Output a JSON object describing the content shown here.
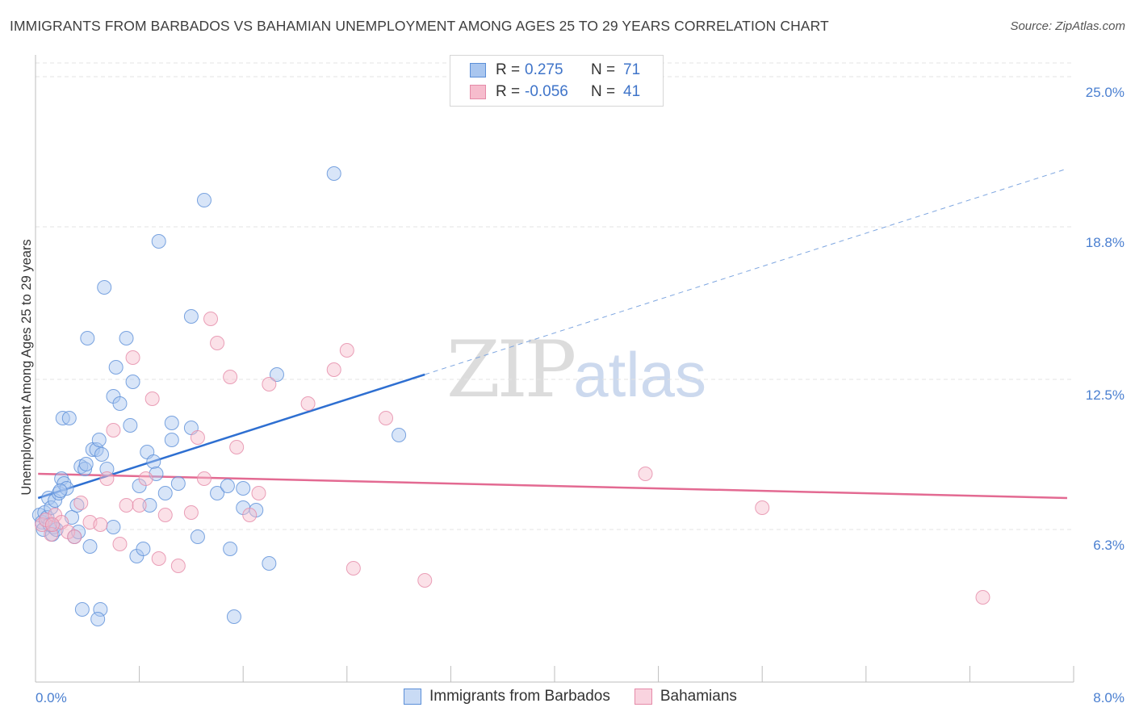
{
  "header": {
    "title": "IMMIGRANTS FROM BARBADOS VS BAHAMIAN UNEMPLOYMENT AMONG AGES 25 TO 29 YEARS CORRELATION CHART",
    "source": "Source: ZipAtlas.com"
  },
  "watermark": {
    "zip": "ZIP",
    "atlas": "atlas"
  },
  "legend": {
    "r_label": "R =",
    "n_label": "N =",
    "series": [
      {
        "r": "0.275",
        "n": "71",
        "color": "#a9c6ef",
        "border": "#5b8fd8"
      },
      {
        "r": "-0.056",
        "n": "41",
        "color": "#f6bccd",
        "border": "#e58aa8"
      }
    ]
  },
  "chart_data": {
    "type": "scatter",
    "title": "IMMIGRANTS FROM BARBADOS VS BAHAMIAN UNEMPLOYMENT AMONG AGES 25 TO 29 YEARS CORRELATION CHART",
    "xlabel": "",
    "ylabel": "Unemployment Among Ages 25 to 29 years",
    "xlim": [
      0,
      8
    ],
    "ylim": [
      0,
      25.9
    ],
    "x_tick_labels": [
      {
        "value": 0,
        "label": "0.0%"
      },
      {
        "value": 8,
        "label": "8.0%"
      }
    ],
    "y_ticks": [
      {
        "value": 6.3,
        "label": "6.3%"
      },
      {
        "value": 12.5,
        "label": "12.5%"
      },
      {
        "value": 18.8,
        "label": "18.8%"
      },
      {
        "value": 25.0,
        "label": "25.0%"
      }
    ],
    "series": [
      {
        "name": "Immigrants from Barbados",
        "color": "#a9c6ef",
        "stroke": "#5b8fd8",
        "trend": {
          "x0": 0.02,
          "y0": 7.6,
          "x1": 3.0,
          "y1": 12.7,
          "dash_to_x": 7.95,
          "dash_to_y": 21.2
        },
        "points": [
          [
            0.03,
            6.9
          ],
          [
            0.05,
            6.6
          ],
          [
            0.06,
            6.3
          ],
          [
            0.07,
            7.0
          ],
          [
            0.09,
            6.8
          ],
          [
            0.1,
            7.6
          ],
          [
            0.12,
            7.2
          ],
          [
            0.13,
            6.1
          ],
          [
            0.14,
            6.4
          ],
          [
            0.15,
            7.5
          ],
          [
            0.18,
            7.8
          ],
          [
            0.2,
            8.4
          ],
          [
            0.21,
            10.9
          ],
          [
            0.22,
            8.2
          ],
          [
            0.24,
            8.0
          ],
          [
            0.26,
            10.9
          ],
          [
            0.28,
            6.8
          ],
          [
            0.3,
            6.0
          ],
          [
            0.32,
            7.3
          ],
          [
            0.33,
            6.2
          ],
          [
            0.35,
            8.9
          ],
          [
            0.38,
            8.8
          ],
          [
            0.39,
            9.0
          ],
          [
            0.4,
            14.2
          ],
          [
            0.42,
            5.6
          ],
          [
            0.44,
            9.6
          ],
          [
            0.47,
            9.6
          ],
          [
            0.49,
            10.0
          ],
          [
            0.5,
            3.0
          ],
          [
            0.51,
            9.4
          ],
          [
            0.53,
            16.3
          ],
          [
            0.55,
            8.8
          ],
          [
            0.6,
            6.4
          ],
          [
            0.6,
            11.8
          ],
          [
            0.62,
            13.0
          ],
          [
            0.65,
            11.5
          ],
          [
            0.7,
            14.2
          ],
          [
            0.73,
            10.6
          ],
          [
            0.75,
            12.4
          ],
          [
            0.78,
            5.2
          ],
          [
            0.8,
            8.1
          ],
          [
            0.83,
            5.5
          ],
          [
            0.86,
            9.5
          ],
          [
            0.88,
            7.3
          ],
          [
            0.91,
            9.1
          ],
          [
            0.93,
            8.6
          ],
          [
            0.95,
            18.2
          ],
          [
            1.0,
            7.8
          ],
          [
            1.05,
            10.0
          ],
          [
            1.05,
            10.7
          ],
          [
            1.1,
            8.2
          ],
          [
            1.2,
            10.5
          ],
          [
            1.2,
            15.1
          ],
          [
            1.25,
            6.0
          ],
          [
            1.3,
            19.9
          ],
          [
            1.4,
            7.8
          ],
          [
            1.48,
            8.1
          ],
          [
            1.5,
            5.5
          ],
          [
            1.53,
            2.7
          ],
          [
            1.6,
            8.0
          ],
          [
            1.6,
            7.2
          ],
          [
            1.7,
            7.1
          ],
          [
            1.8,
            4.9
          ],
          [
            1.86,
            12.7
          ],
          [
            2.3,
            21.0
          ],
          [
            2.8,
            10.2
          ],
          [
            0.16,
            6.3
          ],
          [
            0.11,
            6.5
          ],
          [
            0.19,
            7.9
          ],
          [
            0.36,
            3.0
          ],
          [
            0.48,
            2.6
          ]
        ]
      },
      {
        "name": "Bahamians",
        "color": "#f6bccd",
        "stroke": "#e58aa8",
        "trend": {
          "x0": 0.02,
          "y0": 8.6,
          "x1": 7.95,
          "y1": 7.6
        },
        "points": [
          [
            0.05,
            6.5
          ],
          [
            0.08,
            6.7
          ],
          [
            0.12,
            6.1
          ],
          [
            0.15,
            6.9
          ],
          [
            0.2,
            6.6
          ],
          [
            0.25,
            6.2
          ],
          [
            0.3,
            6.0
          ],
          [
            0.35,
            7.4
          ],
          [
            0.42,
            6.6
          ],
          [
            0.5,
            6.5
          ],
          [
            0.55,
            8.4
          ],
          [
            0.6,
            10.4
          ],
          [
            0.65,
            5.7
          ],
          [
            0.7,
            7.3
          ],
          [
            0.75,
            13.4
          ],
          [
            0.8,
            7.3
          ],
          [
            0.85,
            8.4
          ],
          [
            0.9,
            11.7
          ],
          [
            0.95,
            5.1
          ],
          [
            1.0,
            6.9
          ],
          [
            1.1,
            4.8
          ],
          [
            1.2,
            7.0
          ],
          [
            1.25,
            10.1
          ],
          [
            1.3,
            8.4
          ],
          [
            1.35,
            15.0
          ],
          [
            1.4,
            14.0
          ],
          [
            1.5,
            12.6
          ],
          [
            1.55,
            9.7
          ],
          [
            1.65,
            6.9
          ],
          [
            1.72,
            7.8
          ],
          [
            1.8,
            12.3
          ],
          [
            2.1,
            11.5
          ],
          [
            2.3,
            12.9
          ],
          [
            2.4,
            13.7
          ],
          [
            2.45,
            4.7
          ],
          [
            2.7,
            10.9
          ],
          [
            3.0,
            4.2
          ],
          [
            4.7,
            8.6
          ],
          [
            5.6,
            7.2
          ],
          [
            7.3,
            3.5
          ],
          [
            0.13,
            6.5
          ]
        ]
      }
    ],
    "legend": [
      "Immigrants from Barbados",
      "Bahamians"
    ]
  }
}
